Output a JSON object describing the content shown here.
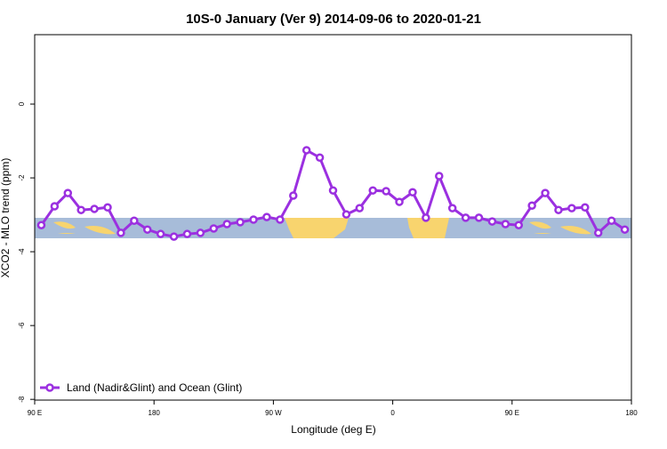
{
  "chart_data": {
    "type": "line",
    "title": "10S-0 January (Ver 9)   2014-09-06 to 2020-01-21",
    "x_label": "Longitude (deg E)",
    "y_label": "XCO2 - MLO trend (ppm)",
    "x": [
      95,
      105,
      115,
      125,
      135,
      145,
      155,
      165,
      175,
      185,
      195,
      205,
      215,
      225,
      235,
      245,
      255,
      265,
      275,
      285,
      295,
      305,
      315,
      325,
      335,
      345,
      355,
      365,
      375,
      385,
      395,
      405,
      415,
      425,
      435,
      445,
      455,
      465,
      475,
      485,
      495,
      505,
      515,
      525,
      535
    ],
    "series": [
      {
        "name": "Land (Nadir&Glint) and Ocean (Glint)",
        "color": "#9b30e0",
        "values": [
          -3.28,
          -2.77,
          -2.41,
          -2.87,
          -2.84,
          -2.8,
          -3.49,
          -3.16,
          -3.4,
          -3.52,
          -3.59,
          -3.52,
          -3.49,
          -3.37,
          -3.25,
          -3.2,
          -3.13,
          -3.06,
          -3.13,
          -2.48,
          -1.25,
          -1.45,
          -2.34,
          -2.99,
          -2.82,
          -2.34,
          -2.36,
          -2.65,
          -2.39,
          -3.08,
          -1.95,
          -2.82,
          -3.08,
          -3.08,
          -3.18,
          -3.25,
          -3.28,
          -2.75,
          -2.41,
          -2.87,
          -2.82,
          -2.8,
          -3.49,
          -3.16,
          -3.4
        ]
      }
    ],
    "xlim": [
      90,
      540
    ],
    "xticks": [
      {
        "value": 90,
        "label": "90 E"
      },
      {
        "value": 180,
        "label": "180"
      },
      {
        "value": 270,
        "label": "90 W"
      },
      {
        "value": 360,
        "label": "0"
      },
      {
        "value": 450,
        "label": "90 E"
      },
      {
        "value": 540,
        "label": "180"
      }
    ],
    "ylim": [
      -8.02,
      1.88
    ],
    "yticks": [
      0,
      -2,
      -4,
      -6,
      -8
    ],
    "legend": "bottom-left"
  }
}
